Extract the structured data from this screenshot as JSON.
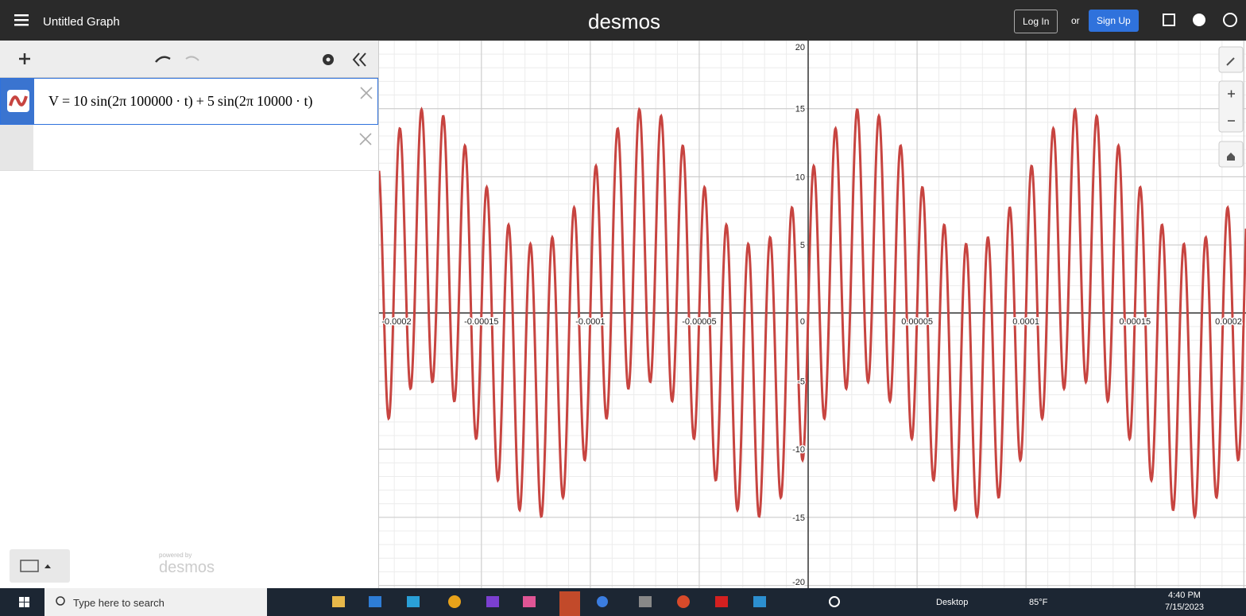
{
  "header": {
    "menu_title": "Untitled Graph",
    "logo": "desmos",
    "login": "Log In",
    "or": "or",
    "signup": "Sign Up"
  },
  "expression_list": {
    "expressions": [
      {
        "lhs": "V",
        "equals": "=",
        "terms": [
          {
            "amplitude": 10,
            "func": "sin(2π",
            "frequency": 100000,
            "arg": "· t)"
          },
          {
            "sign": "+",
            "amplitude": 5,
            "func": "sin(2π",
            "frequency": 10000,
            "arg": "· t)"
          }
        ]
      }
    ],
    "powered_by": "powered by",
    "brand": "desmos"
  },
  "graph": {
    "xlim": [
      -0.000197,
      0.000201
    ],
    "ylim": [
      -20.2,
      20
    ],
    "xticks": [
      -0.0002,
      -0.00015,
      -0.0001,
      -5e-05,
      0,
      5e-05,
      0.0001,
      0.00015,
      0.0002
    ],
    "yticks": [
      20,
      15,
      10,
      5,
      -5,
      -10,
      -15,
      -20
    ],
    "grid": true,
    "curve_color": "#c74440"
  },
  "taskbar": {
    "search": "Type here to search",
    "desktop": "Desktop",
    "weather": "85°F",
    "time": "4:40 PM",
    "date": "7/15/2023"
  }
}
